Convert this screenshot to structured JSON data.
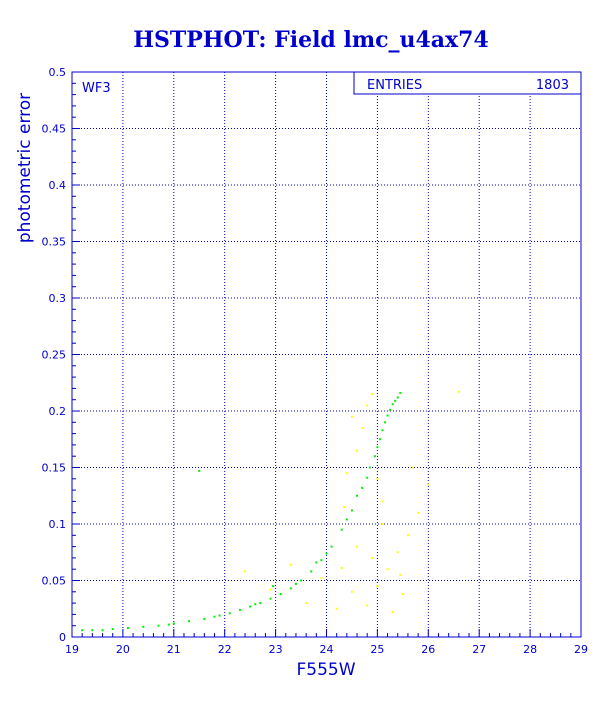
{
  "chart_data": {
    "type": "scatter",
    "title": "HSTPHOT: Field lmc_u4ax74",
    "xlabel": "F555W",
    "ylabel": "photometric error",
    "xlim": [
      19,
      29
    ],
    "ylim": [
      0,
      0.5
    ],
    "x_ticks": [
      "19",
      "20",
      "21",
      "22",
      "23",
      "24",
      "25",
      "26",
      "27",
      "28",
      "29"
    ],
    "y_ticks": [
      "0",
      "0.05",
      "0.1",
      "0.15",
      "0.2",
      "0.25",
      "0.3",
      "0.35",
      "0.4",
      "0.45",
      "0.5"
    ],
    "grid": true,
    "panel_label": "WF3",
    "stats_box": {
      "label": "ENTRIES",
      "value": "1803"
    },
    "series": [
      {
        "color": "#00ee00",
        "points": [
          [
            19.2,
            0.006
          ],
          [
            19.4,
            0.006
          ],
          [
            19.6,
            0.006
          ],
          [
            19.8,
            0.007
          ],
          [
            20.1,
            0.008
          ],
          [
            20.4,
            0.009
          ],
          [
            20.7,
            0.01
          ],
          [
            21.0,
            0.012
          ],
          [
            21.3,
            0.014
          ],
          [
            21.6,
            0.016
          ],
          [
            21.9,
            0.019
          ],
          [
            22.1,
            0.021
          ],
          [
            22.3,
            0.024
          ],
          [
            22.5,
            0.027
          ],
          [
            22.7,
            0.03
          ],
          [
            22.9,
            0.034
          ],
          [
            23.1,
            0.038
          ],
          [
            23.3,
            0.043
          ],
          [
            23.5,
            0.05
          ],
          [
            23.7,
            0.058
          ],
          [
            23.9,
            0.068
          ],
          [
            24.1,
            0.08
          ],
          [
            24.3,
            0.095
          ],
          [
            24.5,
            0.112
          ],
          [
            24.7,
            0.132
          ],
          [
            24.85,
            0.15
          ],
          [
            25.0,
            0.168
          ],
          [
            25.1,
            0.183
          ],
          [
            25.2,
            0.196
          ],
          [
            25.3,
            0.206
          ],
          [
            25.4,
            0.212
          ],
          [
            25.45,
            0.216
          ],
          [
            20.9,
            0.011
          ],
          [
            21.8,
            0.018
          ],
          [
            22.6,
            0.029
          ],
          [
            23.4,
            0.047
          ],
          [
            24.0,
            0.074
          ],
          [
            24.4,
            0.104
          ],
          [
            24.8,
            0.141
          ],
          [
            25.05,
            0.175
          ],
          [
            25.25,
            0.201
          ],
          [
            25.35,
            0.209
          ],
          [
            21.5,
            0.147
          ],
          [
            22.95,
            0.045
          ],
          [
            23.8,
            0.066
          ],
          [
            24.6,
            0.125
          ],
          [
            24.95,
            0.16
          ],
          [
            25.15,
            0.19
          ]
        ]
      },
      {
        "color": "#ffff00",
        "points": [
          [
            22.4,
            0.058
          ],
          [
            22.9,
            0.042
          ],
          [
            23.3,
            0.064
          ],
          [
            23.6,
            0.03
          ],
          [
            23.9,
            0.052
          ],
          [
            24.2,
            0.025
          ],
          [
            24.3,
            0.061
          ],
          [
            24.5,
            0.04
          ],
          [
            24.6,
            0.08
          ],
          [
            24.8,
            0.028
          ],
          [
            24.9,
            0.07
          ],
          [
            25.0,
            0.045
          ],
          [
            25.1,
            0.1
          ],
          [
            25.2,
            0.06
          ],
          [
            25.3,
            0.022
          ],
          [
            25.4,
            0.075
          ],
          [
            25.5,
            0.038
          ],
          [
            25.6,
            0.09
          ],
          [
            24.4,
            0.145
          ],
          [
            24.6,
            0.165
          ],
          [
            24.7,
            0.185
          ],
          [
            24.8,
            0.205
          ],
          [
            24.5,
            0.195
          ],
          [
            24.9,
            0.215
          ],
          [
            25.0,
            0.14
          ],
          [
            25.1,
            0.12
          ],
          [
            25.8,
            0.11
          ],
          [
            26.0,
            0.135
          ],
          [
            26.6,
            0.217
          ],
          [
            25.7,
            0.15
          ],
          [
            24.35,
            0.115
          ],
          [
            25.45,
            0.055
          ]
        ]
      }
    ]
  }
}
